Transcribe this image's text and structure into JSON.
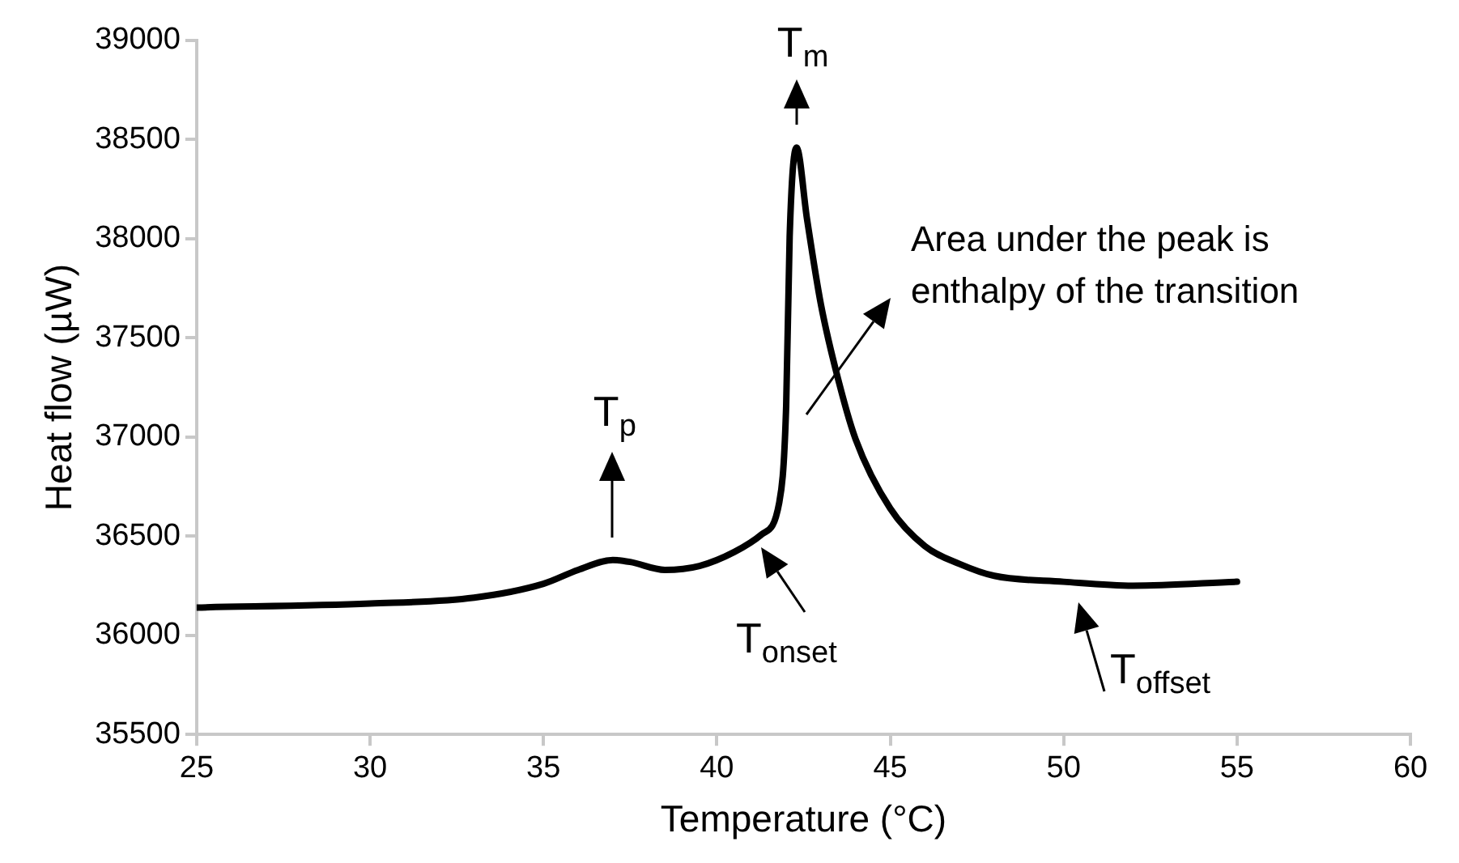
{
  "chart_data": {
    "type": "line",
    "xlabel": "Temperature (°C)",
    "ylabel": "Heat flow (µW)",
    "color": "#000000",
    "x": [
      25,
      30,
      33,
      35,
      36,
      37,
      37.5,
      38.5,
      39.5,
      40.5,
      41.3,
      41.8,
      42,
      42.1,
      42.3,
      42.6,
      43,
      43.5,
      44,
      45,
      46,
      47,
      48,
      50,
      52,
      55
    ],
    "values": [
      36140,
      36160,
      36190,
      36260,
      36330,
      36380,
      36370,
      36330,
      36350,
      36420,
      36510,
      36670,
      37160,
      38010,
      38460,
      38100,
      37670,
      37290,
      36990,
      36640,
      36450,
      36360,
      36300,
      36270,
      36250,
      36270
    ],
    "xlim": [
      25,
      60
    ],
    "xticks": [
      25,
      30,
      35,
      40,
      45,
      50,
      55,
      60
    ],
    "ylim": [
      35500,
      39000
    ],
    "yticks": [
      35500,
      36000,
      36500,
      37000,
      37500,
      38000,
      38500,
      39000
    ],
    "marker": "none",
    "line_style": "solid",
    "legend": false,
    "annotations": [
      {
        "text": "T$_{p}$",
        "x": 37,
        "y": 36385
      },
      {
        "text": "T$_{m}$",
        "x": 42.3,
        "y": 38460
      },
      {
        "text": "T$_{onset}$",
        "x": 41.3,
        "y": 36510
      },
      {
        "text": "T$_{offset}$",
        "x": 50.5,
        "y": 36240
      },
      "Area under the peak is enthalpy of the transition"
    ]
  }
}
